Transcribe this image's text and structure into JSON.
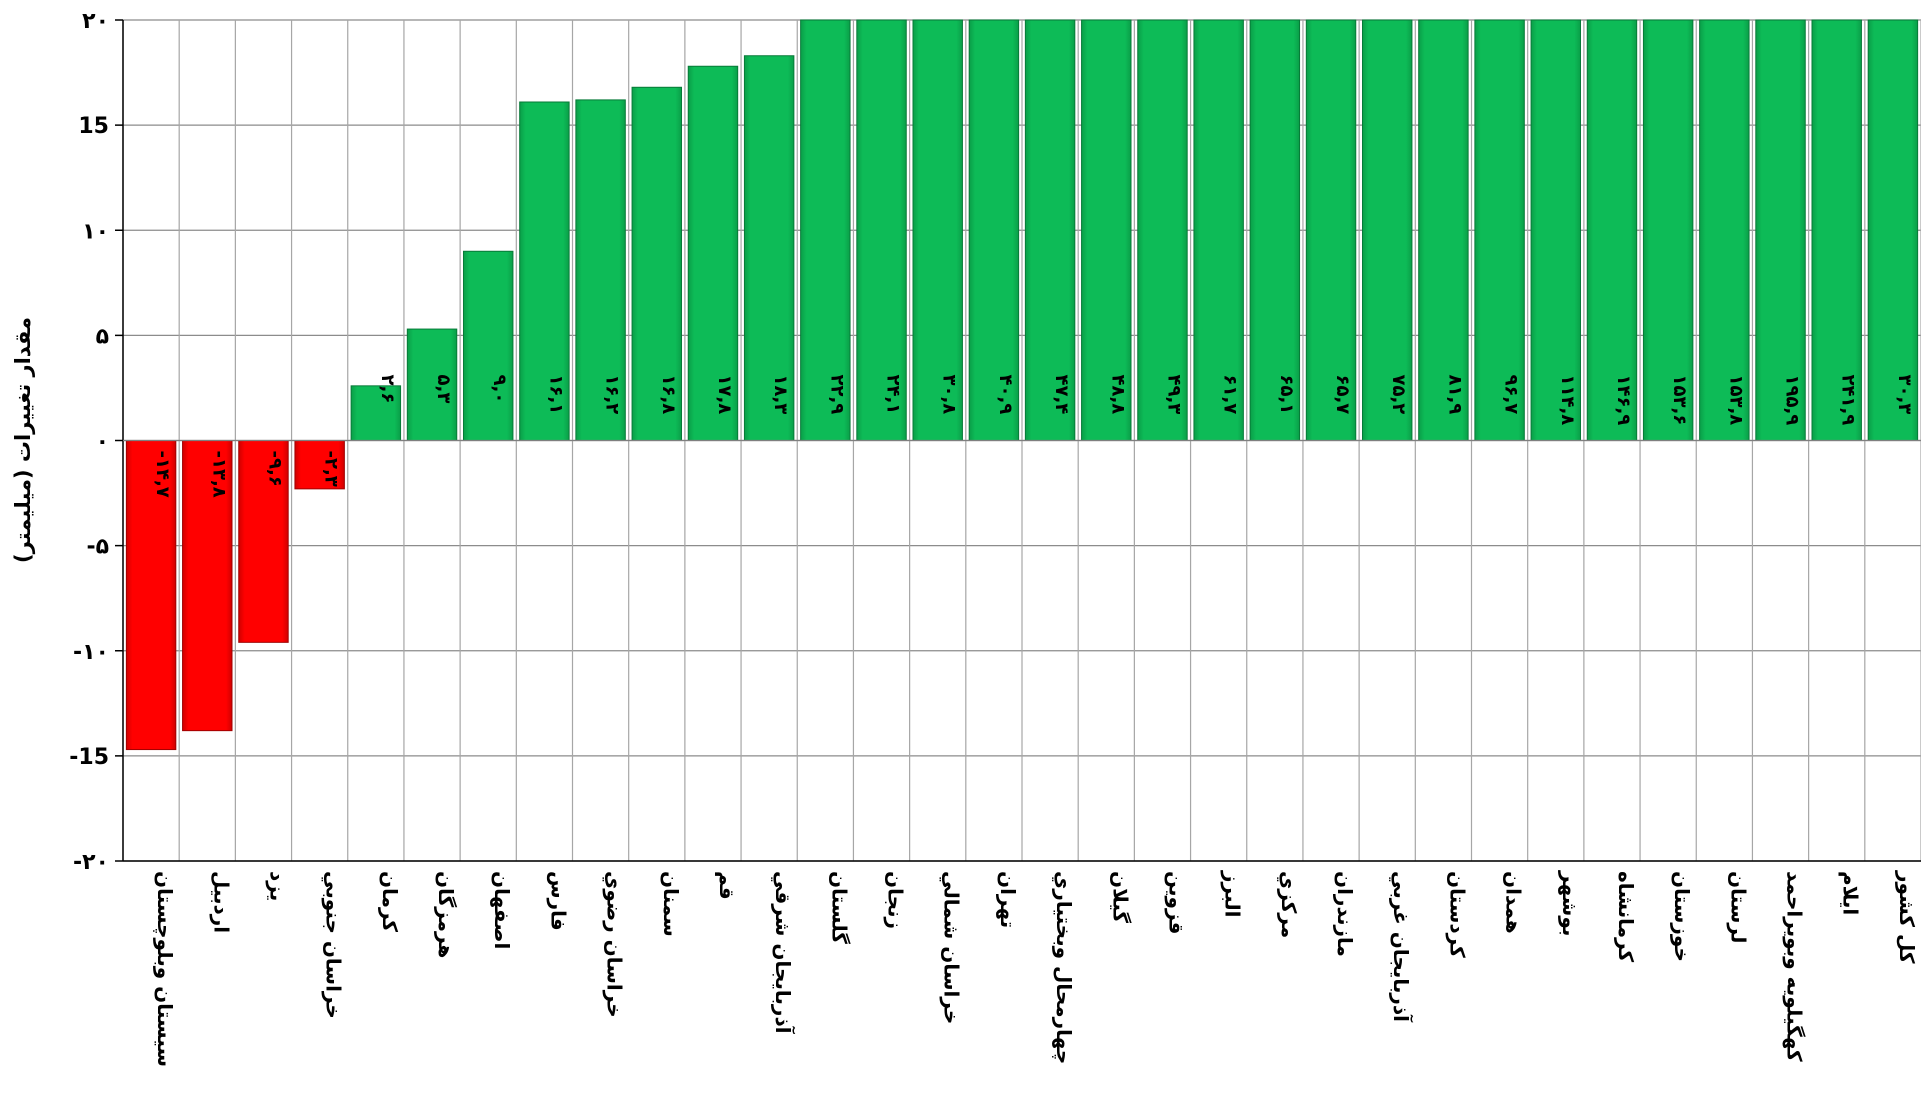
{
  "chart_data": {
    "type": "bar",
    "title": "",
    "xlabel": "",
    "ylabel": "مقدار تغییرات (میلیمتر)",
    "ylim": [
      -20,
      20
    ],
    "yticks": [
      -20,
      -15,
      -10,
      -5,
      0,
      5,
      10,
      15,
      20
    ],
    "ytick_labels": [
      "-۲۰",
      "-15",
      "-۱۰",
      "-۵",
      "۰",
      "۵",
      "۱۰",
      "15",
      "۲۰"
    ],
    "grid": true,
    "legend": "none",
    "positive_color": "#0DBB57",
    "negative_color": "#FF0000",
    "categories": [
      "سيستان وبلوچستان",
      "اردبيل",
      "يزد",
      "خراسان جنوبي",
      "كرمان",
      "هرمزگان",
      "اصفهان",
      "فارس",
      "خراسان رضوي",
      "سمنان",
      "قم",
      "آذربايجان شرقي",
      "گلستان",
      "زنجان",
      "خراسان شمالي",
      "تهران",
      "چهارمحال وبختياري",
      "گيلان",
      "قزوين",
      "البرز",
      "مركزي",
      "مازندران",
      "آذربايجان غربي",
      "كردستان",
      "همدان",
      "بوشهر",
      "كرمانشاه",
      "خوزستان",
      "لرستان",
      "كهگيلويه وبويراحمد",
      "ايلام",
      "كل كشور"
    ],
    "values": [
      -14.7,
      -13.8,
      -9.6,
      -2.3,
      2.6,
      5.3,
      9.0,
      16.1,
      16.2,
      16.8,
      17.8,
      18.3,
      22.9,
      24.1,
      30.8,
      40.9,
      47.4,
      48.8,
      49.3,
      61.7,
      65.1,
      65.7,
      75.2,
      81.9,
      96.7,
      114.8,
      146.9,
      153.6,
      153.8,
      195.9,
      241.9,
      30.3
    ],
    "data_labels": [
      "-۱۴,۷",
      "-۱۳,۸",
      "-۹,۶",
      "-۲,۳",
      "۲,۶",
      "۵,۳",
      "۹,۰",
      "۱۶,۱",
      "۱۶,۲",
      "۱۶,۸",
      "۱۷,۸",
      "۱۸,۳",
      "۲۲,۹",
      "۲۴,۱",
      "۳۰,۸",
      "۴۰,۹",
      "۴۷,۴",
      "۴۸,۸",
      "۴۹,۳",
      "۶۱,۷",
      "۶۵,۱",
      "۶۵,۷",
      "۷۵,۲",
      "۸۱,۹",
      "۹۶,۷",
      "۱۱۴,۸",
      "۱۴۶,۹",
      "۱۵۳,۶",
      "۱۵۳,۸",
      "۱۹۵,۹",
      "۲۴۱,۹",
      "۳۰,۳"
    ]
  }
}
